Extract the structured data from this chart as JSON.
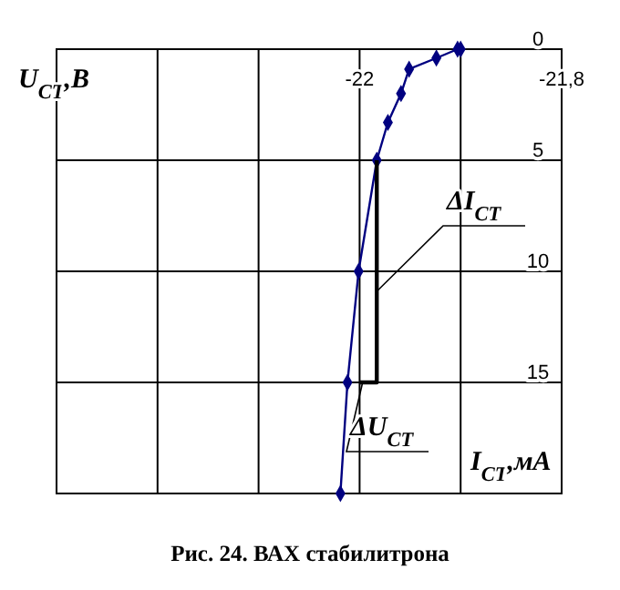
{
  "chart_data": {
    "type": "line",
    "title": "Рис. 24. ВАХ стабилитрона",
    "xlabel": "I$_{СТ}$,мА",
    "ylabel": "U$_{СТ}$,В",
    "xlim": [
      -22.3,
      -21.8
    ],
    "xticks": [
      {
        "value": -22.2,
        "label": null
      },
      {
        "value": -22.1,
        "label": null
      },
      -22,
      {
        "value": -21.9,
        "label": null
      },
      {
        "value": -21.8,
        "label": "-21,8"
      }
    ],
    "ylim": [
      20,
      0
    ],
    "yticks": [
      0,
      5,
      10,
      15
    ],
    "grid": true,
    "series": [
      {
        "color": "#000080",
        "marker": "diamond",
        "x": [
          -22.019,
          -22.012,
          -22.001,
          -21.983,
          -21.972,
          -21.959,
          -21.951,
          -21.924,
          -21.903,
          -21.9
        ],
        "values": [
          20,
          15,
          10,
          5,
          3.3,
          2,
          0.9,
          0.4,
          0,
          0
        ]
      },
      {
        "color": "#000000",
        "marker": "none",
        "x": [
          -21.983,
          -21.983,
          -22.0
        ],
        "values": [
          5,
          15,
          15
        ]
      }
    ],
    "annotations": [
      {
        "text": "ΔI$_{СТ}$",
        "x": -21.983,
        "y": 10.9
      },
      {
        "text": "ΔU$_{СТ}$",
        "x": -21.997,
        "y": 15
      }
    ]
  }
}
